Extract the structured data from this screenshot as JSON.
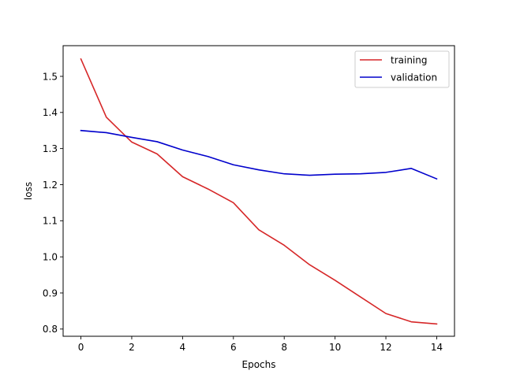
{
  "chart_data": {
    "type": "line",
    "title": "",
    "xlabel": "Epochs",
    "ylabel": "loss",
    "xlim": [
      -0.7,
      14.7
    ],
    "ylim": [
      0.78,
      1.585
    ],
    "xticks": [
      0,
      2,
      4,
      6,
      8,
      10,
      12,
      14
    ],
    "yticks": [
      0.8,
      0.9,
      1.0,
      1.1,
      1.2,
      1.3,
      1.4,
      1.5
    ],
    "xtick_labels": [
      "0",
      "2",
      "4",
      "6",
      "8",
      "10",
      "12",
      "14"
    ],
    "ytick_labels": [
      "0.8",
      "0.9",
      "1.0",
      "1.1",
      "1.2",
      "1.3",
      "1.4",
      "1.5"
    ],
    "grid": false,
    "legend_position": "top-right",
    "x": [
      0,
      1,
      2,
      3,
      4,
      5,
      6,
      7,
      8,
      9,
      10,
      11,
      12,
      13,
      14
    ],
    "series": [
      {
        "name": "training",
        "color": "#d62728",
        "values": [
          1.548,
          1.387,
          1.318,
          1.285,
          1.222,
          1.188,
          1.15,
          1.075,
          1.032,
          0.978,
          0.935,
          0.889,
          0.843,
          0.82,
          0.814
        ]
      },
      {
        "name": "validation",
        "color": "#0000cc",
        "values": [
          1.35,
          1.344,
          1.331,
          1.319,
          1.296,
          1.278,
          1.255,
          1.241,
          1.23,
          1.226,
          1.229,
          1.23,
          1.234,
          1.245,
          1.216
        ]
      }
    ]
  }
}
